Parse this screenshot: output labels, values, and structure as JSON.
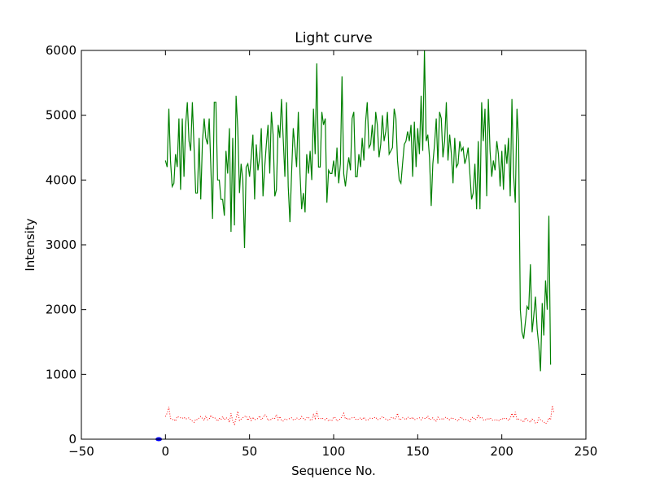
{
  "chart_data": {
    "type": "line",
    "title": "Light curve",
    "xlabel": "Sequence No.",
    "ylabel": "Intensity",
    "xlim": [
      -50,
      250
    ],
    "ylim": [
      0,
      6000
    ],
    "xticks": [
      -50,
      0,
      50,
      100,
      150,
      200,
      250
    ],
    "yticks": [
      0,
      1000,
      2000,
      3000,
      4000,
      5000,
      6000
    ],
    "grid": false,
    "series": [
      {
        "color": "#008000",
        "style": "solid",
        "x_start": 0,
        "x_step": 1,
        "values": [
          4300,
          4200,
          5100,
          4300,
          3900,
          3950,
          4400,
          4200,
          4950,
          3850,
          4950,
          4050,
          4850,
          5200,
          4600,
          4450,
          5200,
          4500,
          3800,
          3800,
          4650,
          3700,
          4600,
          4950,
          4650,
          4550,
          4950,
          4200,
          3400,
          5200,
          5200,
          4000,
          4000,
          3700,
          3700,
          3450,
          4450,
          4100,
          4800,
          3200,
          4650,
          3300,
          5300,
          4800,
          3800,
          4250,
          4000,
          2950,
          4200,
          4250,
          4050,
          4350,
          4700,
          3700,
          4550,
          4150,
          4350,
          4800,
          3750,
          4200,
          4550,
          4850,
          4100,
          5050,
          4700,
          3750,
          3850,
          4850,
          4650,
          5250,
          4650,
          4050,
          5200,
          3900,
          3350,
          4100,
          4800,
          4500,
          4200,
          5050,
          4100,
          3550,
          3800,
          3500,
          4400,
          4100,
          4450,
          4000,
          5100,
          4400,
          5800,
          4200,
          4200,
          5050,
          4850,
          4950,
          3650,
          4150,
          4100,
          4100,
          4300,
          4050,
          4500,
          3950,
          4250,
          5600,
          4100,
          3900,
          4150,
          4350,
          4150,
          4950,
          5050,
          4050,
          4050,
          4400,
          4200,
          4650,
          4300,
          4900,
          5200,
          4500,
          4550,
          4850,
          4450,
          5050,
          4850,
          4350,
          4550,
          5000,
          4600,
          4750,
          5050,
          4400,
          4450,
          4500,
          5100,
          4950,
          4300,
          4000,
          3950,
          4250,
          4550,
          4600,
          4750,
          4600,
          4850,
          4050,
          4900,
          4200,
          4800,
          4400,
          5300,
          4450,
          6000,
          4600,
          4700,
          4350,
          3600,
          4250,
          4550,
          4950,
          4250,
          5050,
          4950,
          4350,
          4600,
          5200,
          4300,
          4700,
          4400,
          3950,
          4650,
          4200,
          4250,
          4600,
          4450,
          4500,
          4250,
          4350,
          4500,
          4100,
          3700,
          3800,
          4250,
          3550,
          4600,
          3550,
          5200,
          4600,
          5100,
          3750,
          5250,
          4450,
          4050,
          4300,
          4150,
          4600,
          4400,
          3900,
          4450,
          3850,
          4550,
          4250,
          4650,
          3750,
          5250,
          4100,
          3650,
          5100,
          4600,
          2000,
          1650,
          1550,
          1800,
          2050,
          2000,
          2700,
          1650,
          1900,
          2200,
          1700,
          1450,
          1050,
          2100,
          1600,
          2450,
          2000,
          3450,
          1150
        ]
      },
      {
        "color": "#ff0000",
        "style": "dotted",
        "x_start": 0,
        "x_step": 1,
        "values": [
          350,
          400,
          500,
          320,
          300,
          310,
          280,
          350,
          340,
          330,
          320,
          340,
          310,
          320,
          330,
          300,
          280,
          260,
          310,
          300,
          330,
          350,
          320,
          290,
          360,
          300,
          310,
          370,
          330,
          340,
          310,
          280,
          320,
          300,
          350,
          300,
          330,
          320,
          260,
          400,
          280,
          230,
          320,
          430,
          290,
          310,
          330,
          350,
          360,
          290,
          350,
          290,
          340,
          300,
          310,
          320,
          360,
          300,
          330,
          380,
          360,
          290,
          310,
          300,
          330,
          320,
          380,
          300,
          350,
          290,
          280,
          310,
          300,
          310,
          320,
          330,
          300,
          300,
          330,
          310,
          300,
          350,
          320,
          300,
          330,
          340,
          300,
          290,
          380,
          320,
          430,
          320,
          310,
          330,
          310,
          300,
          320,
          280,
          300,
          290,
          340,
          330,
          280,
          300,
          310,
          350,
          400,
          310,
          330,
          300,
          320,
          330,
          340,
          310,
          300,
          310,
          330,
          300,
          340,
          300,
          290,
          310,
          330,
          320,
          330,
          340,
          300,
          310,
          320,
          350,
          330,
          310,
          300,
          290,
          330,
          340,
          310,
          320,
          400,
          300,
          310,
          330,
          320,
          300,
          340,
          330,
          310,
          340,
          300,
          310,
          320,
          330,
          300,
          330,
          320,
          320,
          360,
          300,
          310,
          330,
          290,
          280,
          340,
          310,
          320,
          300,
          330,
          340,
          310,
          300,
          330,
          320,
          310,
          300,
          280,
          330,
          340,
          300,
          310,
          300,
          290,
          270,
          330,
          340,
          300,
          310,
          380,
          330,
          340,
          300,
          290,
          320,
          300,
          330,
          300,
          290,
          300,
          300,
          280,
          310,
          300,
          330,
          310,
          320,
          290,
          320,
          400,
          330,
          420,
          300,
          310,
          300,
          290,
          260,
          330,
          300,
          280,
          260,
          310,
          300,
          250,
          250,
          330,
          300,
          280,
          270,
          240,
          260,
          330,
          300,
          520,
          410
        ]
      }
    ],
    "marker": {
      "x": -4,
      "y": 0,
      "color": "#0000ff"
    }
  }
}
